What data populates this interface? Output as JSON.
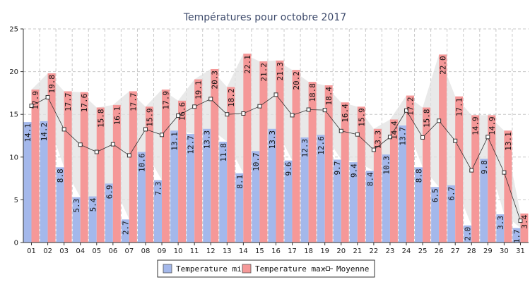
{
  "chart_data": {
    "type": "bar",
    "title": "Températures pour octobre 2017",
    "categories": [
      "01",
      "02",
      "03",
      "04",
      "05",
      "06",
      "07",
      "08",
      "09",
      "10",
      "11",
      "12",
      "13",
      "14",
      "15",
      "16",
      "17",
      "18",
      "19",
      "20",
      "21",
      "22",
      "23",
      "24",
      "25",
      "26",
      "27",
      "28",
      "29",
      "30",
      "31"
    ],
    "series": [
      {
        "name": "Temperature min",
        "color": "#a4b8eb",
        "values": [
          14.1,
          14.2,
          8.8,
          5.3,
          5.4,
          6.9,
          2.7,
          10.6,
          7.3,
          13.1,
          12.7,
          13.3,
          11.8,
          8.1,
          10.7,
          13.3,
          9.6,
          12.3,
          12.6,
          9.7,
          9.4,
          8.4,
          10.3,
          13.7,
          8.8,
          6.5,
          6.7,
          2.0,
          9.8,
          3.3,
          1.7
        ]
      },
      {
        "name": "Temperature max",
        "color": "#f59898",
        "values": [
          17.9,
          19.8,
          17.7,
          17.6,
          15.8,
          16.1,
          17.7,
          15.9,
          17.9,
          16.6,
          19.1,
          20.3,
          18.2,
          22.1,
          21.2,
          21.3,
          20.2,
          18.8,
          18.4,
          16.4,
          15.9,
          13.3,
          14.4,
          17.2,
          15.8,
          22.0,
          17.1,
          14.9,
          14.9,
          13.1,
          3.4
        ]
      },
      {
        "name": "Moyenne",
        "type": "line",
        "color": "#333333",
        "values": [
          16.0,
          17.0,
          13.25,
          11.45,
          10.6,
          11.5,
          10.2,
          13.25,
          12.6,
          14.85,
          15.9,
          16.8,
          15.0,
          15.1,
          15.95,
          17.3,
          14.9,
          15.55,
          15.5,
          13.05,
          12.65,
          10.85,
          12.35,
          15.45,
          12.3,
          14.25,
          11.9,
          8.45,
          12.35,
          8.2,
          2.55
        ]
      }
    ],
    "ylim": [
      0,
      25
    ],
    "yticks": [
      0,
      5,
      10,
      15,
      20,
      25
    ],
    "grid": true,
    "legend": "bottom-center"
  }
}
